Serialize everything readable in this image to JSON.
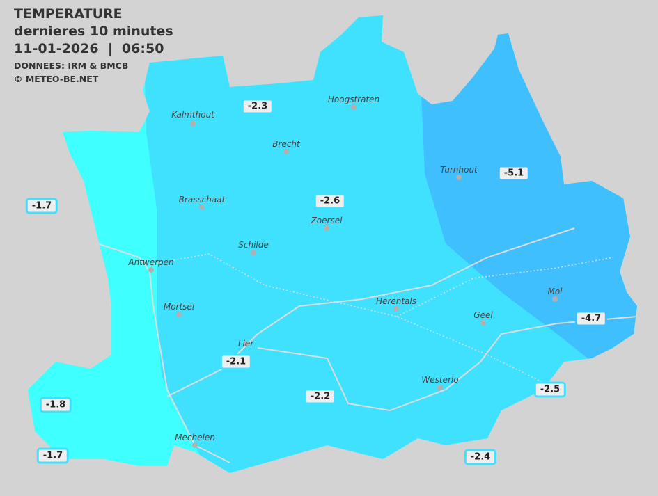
{
  "header": {
    "title": "TEMPERATURE",
    "subtitle": "dernieres 10 minutes",
    "datetime": "11-01-2026  |  06:50",
    "source": "DONNEES: IRM & BMCB",
    "copyright": "© METEO-BE.NET"
  },
  "colors": {
    "background": "#d3d3d3",
    "zone_warm": "#40ffff",
    "zone_mid": "#40e0ff",
    "zone_cold": "#40bfff",
    "label_bg": "#eeeeee"
  },
  "cities": [
    {
      "name": "Kalmthout"
    },
    {
      "name": "Hoogstraten"
    },
    {
      "name": "Brecht"
    },
    {
      "name": "Turnhout"
    },
    {
      "name": "Brasschaat"
    },
    {
      "name": "Zoersel"
    },
    {
      "name": "Schilde"
    },
    {
      "name": "Antwerpen"
    },
    {
      "name": "Mol"
    },
    {
      "name": "Herentals"
    },
    {
      "name": "Mortsel"
    },
    {
      "name": "Geel"
    },
    {
      "name": "Lier"
    },
    {
      "name": "Westerlo"
    },
    {
      "name": "Mechelen"
    }
  ],
  "readings": [
    {
      "value": "-2.3",
      "color": "#40e0ff"
    },
    {
      "value": "-5.1",
      "color": "#40bfff"
    },
    {
      "value": "-1.7",
      "color": "#40e0ff"
    },
    {
      "value": "-2.6",
      "color": "#40e0ff"
    },
    {
      "value": "-4.7",
      "color": "#40bfff"
    },
    {
      "value": "-2.1",
      "color": "#40e0ff"
    },
    {
      "value": "-2.5",
      "color": "#40e0ff"
    },
    {
      "value": "-2.2",
      "color": "#40e0ff"
    },
    {
      "value": "-1.8",
      "color": "#40e0ff"
    },
    {
      "value": "-1.7",
      "color": "#40e0ff"
    },
    {
      "value": "-2.4",
      "color": "#40e0ff"
    }
  ]
}
